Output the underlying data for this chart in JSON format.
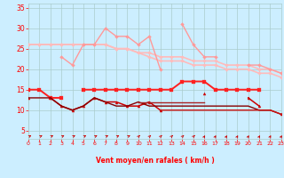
{
  "x": [
    0,
    1,
    2,
    3,
    4,
    5,
    6,
    7,
    8,
    9,
    10,
    11,
    12,
    13,
    14,
    15,
    16,
    17,
    18,
    19,
    20,
    21,
    22,
    23
  ],
  "line_smooth_upper": [
    26,
    26,
    26,
    26,
    26,
    26,
    26,
    26,
    25,
    25,
    24,
    24,
    23,
    23,
    23,
    22,
    22,
    22,
    21,
    21,
    21,
    20,
    20,
    19
  ],
  "line_smooth_lower": [
    26,
    26,
    26,
    26,
    26,
    26,
    26,
    26,
    25,
    25,
    24,
    23,
    22,
    22,
    22,
    21,
    21,
    21,
    20,
    20,
    20,
    19,
    19,
    18
  ],
  "line_jagged_upper": [
    null,
    null,
    null,
    23,
    21,
    26,
    26,
    30,
    28,
    28,
    26,
    28,
    20,
    null,
    31,
    26,
    23,
    23,
    null,
    null,
    21,
    21,
    20,
    19
  ],
  "line_jagged_lower": [
    null,
    null,
    null,
    23,
    21,
    null,
    26,
    null,
    null,
    null,
    null,
    null,
    null,
    null,
    null,
    null,
    null,
    null,
    null,
    null,
    null,
    null,
    null,
    null
  ],
  "line_red_flat": [
    15,
    15,
    13,
    13,
    null,
    15,
    15,
    15,
    15,
    15,
    15,
    15,
    15,
    15,
    17,
    17,
    17,
    15,
    15,
    15,
    15,
    15,
    null,
    null
  ],
  "line_dark_jagged": [
    13,
    null,
    13,
    11,
    10,
    11,
    13,
    12,
    12,
    11,
    11,
    12,
    10,
    null,
    null,
    null,
    14,
    null,
    null,
    null,
    13,
    11,
    null,
    9
  ],
  "line_dark_base": [
    13,
    13,
    13,
    11,
    10,
    11,
    13,
    12,
    11,
    11,
    12,
    11,
    11,
    11,
    11,
    11,
    11,
    11,
    11,
    11,
    11,
    10,
    10,
    9
  ],
  "line_dark_mid": [
    null,
    null,
    null,
    null,
    null,
    null,
    null,
    null,
    null,
    null,
    12,
    12,
    12,
    12,
    12,
    12,
    12,
    null,
    null,
    null,
    null,
    null,
    null,
    null
  ],
  "line_dark_low": [
    null,
    null,
    null,
    null,
    null,
    null,
    null,
    null,
    null,
    null,
    null,
    null,
    10,
    10,
    10,
    10,
    10,
    10,
    10,
    10,
    10,
    10,
    10,
    9
  ],
  "color_pink_light": "#ffbbbb",
  "color_pink_mid": "#ff9999",
  "color_red": "#ff2020",
  "color_darkred1": "#cc0000",
  "color_darkred2": "#880000",
  "color_darkred3": "#aa2222",
  "color_darkred4": "#cc1111",
  "xlabel": "Vent moyen/en rafales ( km/h )",
  "xlim": [
    0,
    23
  ],
  "ylim": [
    3,
    36
  ],
  "yticks": [
    5,
    10,
    15,
    20,
    25,
    30,
    35
  ],
  "xticks": [
    0,
    1,
    2,
    3,
    4,
    5,
    6,
    7,
    8,
    9,
    10,
    11,
    12,
    13,
    14,
    15,
    16,
    17,
    18,
    19,
    20,
    21,
    22,
    23
  ],
  "bg_color": "#cceeff",
  "grid_color": "#aacccc",
  "tick_color": "#ff0000",
  "label_color": "#ff0000"
}
